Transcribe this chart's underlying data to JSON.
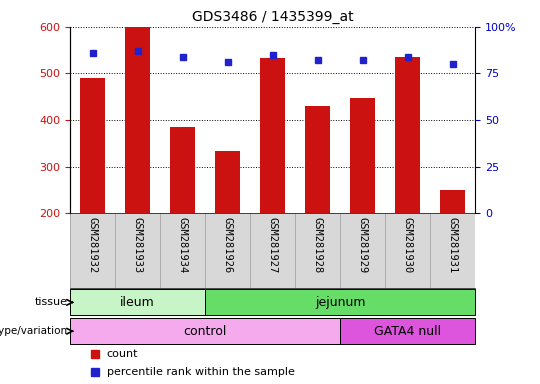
{
  "title": "GDS3486 / 1435399_at",
  "samples": [
    "GSM281932",
    "GSM281933",
    "GSM281934",
    "GSM281926",
    "GSM281927",
    "GSM281928",
    "GSM281929",
    "GSM281930",
    "GSM281931"
  ],
  "counts": [
    490,
    600,
    385,
    333,
    533,
    430,
    447,
    535,
    250
  ],
  "percentile_ranks": [
    86,
    87,
    84,
    81,
    85,
    82,
    82,
    84,
    80
  ],
  "ylim_left": [
    200,
    600
  ],
  "ylim_right": [
    0,
    100
  ],
  "yticks_left": [
    200,
    300,
    400,
    500,
    600
  ],
  "yticks_right": [
    0,
    25,
    50,
    75,
    100
  ],
  "bar_color": "#cc1111",
  "dot_color": "#2222cc",
  "tissue_groups": [
    {
      "label": "ileum",
      "start": 0,
      "end": 3,
      "color": "#c8f5c8"
    },
    {
      "label": "jejunum",
      "start": 3,
      "end": 9,
      "color": "#66dd66"
    }
  ],
  "genotype_groups": [
    {
      "label": "control",
      "start": 0,
      "end": 6,
      "color": "#f5aaee"
    },
    {
      "label": "GATA4 null",
      "start": 6,
      "end": 9,
      "color": "#dd55dd"
    }
  ],
  "legend_count_label": "count",
  "legend_pct_label": "percentile rank within the sample",
  "tissue_row_label": "tissue",
  "genotype_row_label": "genotype/variation",
  "tick_label_color_left": "#cc1111",
  "tick_label_color_right": "#0000cc",
  "xlabel_bg_color": "#d8d8d8",
  "xlabel_sep_color": "#999999"
}
